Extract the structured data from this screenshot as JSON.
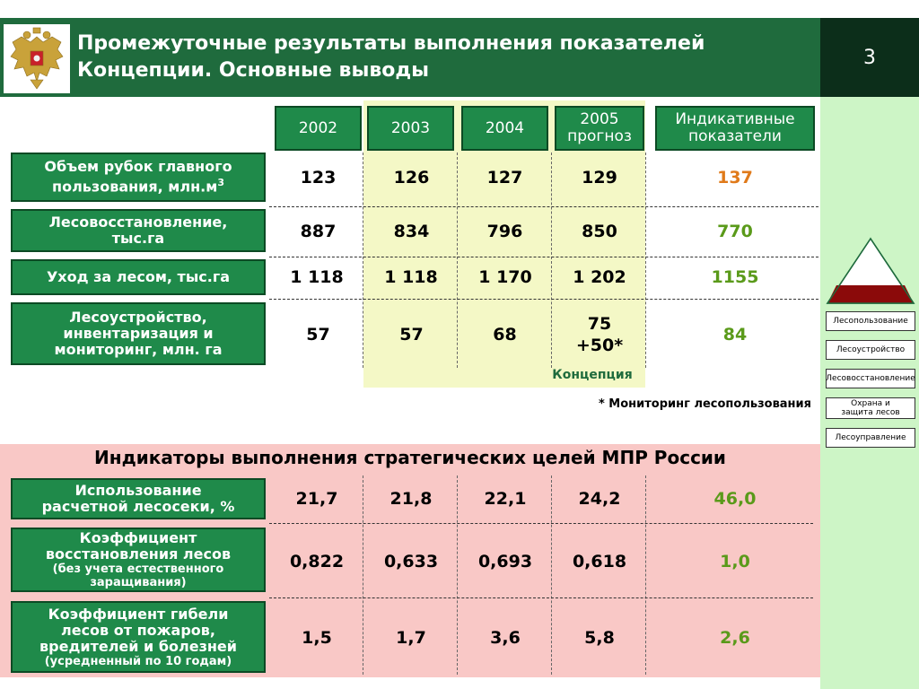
{
  "header": {
    "title_line1": "Промежуточные результаты выполнения показателей",
    "title_line2": "Концепции. Основные выводы",
    "page_number": "3"
  },
  "table1": {
    "columns": [
      "2002",
      "2003",
      "2004",
      "2005 прогноз",
      "Индикативные показатели"
    ],
    "column_2005_line1": "2005",
    "column_2005_line2": "прогноз",
    "column_ind_line1": "Индикативные",
    "column_ind_line2": "показатели",
    "rows": [
      {
        "label_line1": "Объем рубок главного",
        "label_line2": "пользования, млн.м",
        "label_sup": "3",
        "values": [
          "123",
          "126",
          "127",
          "129"
        ],
        "indicator": "137"
      },
      {
        "label_line1": "Лесовосстановление,",
        "label_line2": "тыс.га",
        "values": [
          "887",
          "834",
          "796",
          "850"
        ],
        "indicator": "770"
      },
      {
        "label_line1": "Уход за лесом, тыс.га",
        "values": [
          "1 118",
          "1 118",
          "1 170",
          "1 202"
        ],
        "indicator": "1155"
      },
      {
        "label_line1": "Лесоустройство,",
        "label_line2": "инвентаризация и",
        "label_line3": "мониторинг, млн. га",
        "values": [
          "57",
          "57",
          "68",
          "75"
        ],
        "value4_extra": "+50*",
        "indicator": "84"
      }
    ],
    "concept_label": "Концепция",
    "footnote": "* Мониторинг лесопользования"
  },
  "table2": {
    "title": "Индикаторы выполнения стратегических целей МПР России",
    "rows": [
      {
        "label_line1": "Использование",
        "label_line2": "расчетной лесосеки, %",
        "values": [
          "21,7",
          "21,8",
          "22,1",
          "24,2"
        ],
        "indicator": "46,0"
      },
      {
        "label_line1": "Коэффициент",
        "label_line2": "восстановления лесов",
        "sub_line1": "(без учета естественного",
        "sub_line2": "заращивания)",
        "values": [
          "0,822",
          "0,633",
          "0,693",
          "0,618"
        ],
        "indicator": "1,0"
      },
      {
        "label_line1": "Коэффициент гибели",
        "label_line2": "лесов от пожаров,",
        "label_line3": "вредителей и болезней",
        "sub_line1": "(усредненный по 10 годам)",
        "values": [
          "1,5",
          "1,7",
          "3,6",
          "5,8"
        ],
        "indicator": "2,6"
      }
    ]
  },
  "sidebar": {
    "items": [
      "Лесопользование",
      "Лесоустройство",
      "Лесовосстановление",
      "Охрана и защита лесов",
      "Лесоуправление"
    ],
    "item4_line1": "Охрана и",
    "item4_line2": "защита  лесов"
  },
  "colors": {
    "header_green": "#1f6b3d",
    "label_green": "#1f8a4a",
    "indicator_orange": "#e07a1a",
    "indicator_green": "#5a9a1a",
    "pink": "#f9c8c6",
    "concept_yellow": "#f4f8c6",
    "panel_green": "#cdf5c6",
    "triangle_red": "#8b0a0a"
  },
  "icons": [
    "double-headed-eagle-emblem-icon",
    "pyramid-icon"
  ]
}
